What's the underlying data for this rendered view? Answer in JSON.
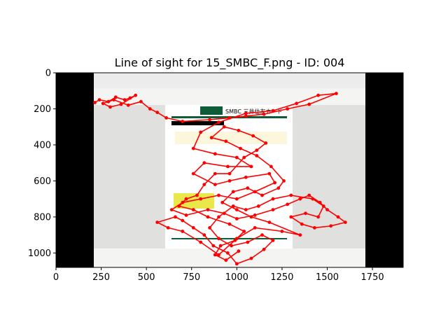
{
  "chart_data": {
    "type": "scatter",
    "title": "Line of sight for 15_SMBC_F.png - ID: 004",
    "xlabel": "",
    "ylabel": "",
    "xlim": [
      0,
      1920
    ],
    "ylim": [
      1080,
      0
    ],
    "y_inverted": true,
    "grid": false,
    "x_ticks": [
      0,
      250,
      500,
      750,
      1000,
      1250,
      1500,
      1750
    ],
    "y_ticks": [
      0,
      200,
      400,
      600,
      800,
      1000
    ],
    "background_image": {
      "description_text": "SMBC 三井住友カード",
      "extent_x": [
        0,
        1920
      ],
      "extent_y": [
        0,
        1080
      ],
      "letterbox_color": "#000000",
      "content_x": [
        210,
        1710
      ]
    },
    "series": [
      {
        "line_color": "#ff0000",
        "marker_color": "#ff0000",
        "marker": "circle",
        "points": [
          [
            215,
            165
          ],
          [
            240,
            150
          ],
          [
            290,
            160
          ],
          [
            330,
            135
          ],
          [
            380,
            150
          ],
          [
            410,
            140
          ],
          [
            440,
            125
          ],
          [
            360,
            175
          ],
          [
            300,
            190
          ],
          [
            260,
            170
          ],
          [
            320,
            150
          ],
          [
            400,
            180
          ],
          [
            470,
            160
          ],
          [
            520,
            200
          ],
          [
            560,
            220
          ],
          [
            610,
            250
          ],
          [
            700,
            270
          ],
          [
            850,
            260
          ],
          [
            960,
            250
          ],
          [
            1050,
            240
          ],
          [
            1150,
            230
          ],
          [
            1280,
            200
          ],
          [
            1400,
            175
          ],
          [
            1550,
            115
          ],
          [
            1450,
            125
          ],
          [
            1330,
            170
          ],
          [
            1200,
            210
          ],
          [
            1050,
            225
          ],
          [
            900,
            275
          ],
          [
            800,
            330
          ],
          [
            760,
            420
          ],
          [
            880,
            450
          ],
          [
            1000,
            470
          ],
          [
            1080,
            520
          ],
          [
            950,
            520
          ],
          [
            820,
            500
          ],
          [
            760,
            560
          ],
          [
            880,
            620
          ],
          [
            960,
            600
          ],
          [
            1050,
            580
          ],
          [
            1180,
            560
          ],
          [
            1210,
            610
          ],
          [
            1100,
            660
          ],
          [
            1000,
            700
          ],
          [
            900,
            680
          ],
          [
            800,
            700
          ],
          [
            700,
            720
          ],
          [
            640,
            760
          ],
          [
            720,
            790
          ],
          [
            840,
            760
          ],
          [
            930,
            780
          ],
          [
            1000,
            810
          ],
          [
            1100,
            790
          ],
          [
            1200,
            760
          ],
          [
            1280,
            730
          ],
          [
            1350,
            700
          ],
          [
            1400,
            680
          ],
          [
            1460,
            720
          ],
          [
            1500,
            760
          ],
          [
            1560,
            800
          ],
          [
            1600,
            830
          ],
          [
            1520,
            850
          ],
          [
            1430,
            860
          ],
          [
            1360,
            840
          ],
          [
            1300,
            800
          ],
          [
            1380,
            780
          ],
          [
            1450,
            800
          ],
          [
            1480,
            740
          ],
          [
            1420,
            700
          ],
          [
            1300,
            680
          ],
          [
            1200,
            700
          ],
          [
            1120,
            740
          ],
          [
            1050,
            760
          ],
          [
            980,
            740
          ],
          [
            900,
            800
          ],
          [
            850,
            860
          ],
          [
            900,
            920
          ],
          [
            970,
            960
          ],
          [
            1060,
            940
          ],
          [
            1140,
            900
          ],
          [
            1200,
            930
          ],
          [
            1150,
            980
          ],
          [
            1080,
            1030
          ],
          [
            1000,
            1060
          ],
          [
            950,
            1000
          ],
          [
            870,
            960
          ],
          [
            820,
            900
          ],
          [
            760,
            860
          ],
          [
            700,
            820
          ],
          [
            660,
            800
          ],
          [
            560,
            830
          ],
          [
            620,
            860
          ],
          [
            700,
            880
          ],
          [
            800,
            940
          ],
          [
            900,
            1010
          ],
          [
            1000,
            920
          ],
          [
            1100,
            860
          ],
          [
            1250,
            880
          ],
          [
            1350,
            900
          ],
          [
            1180,
            830
          ],
          [
            1080,
            800
          ],
          [
            1000,
            760
          ],
          [
            920,
            720
          ],
          [
            980,
            660
          ],
          [
            1060,
            640
          ],
          [
            1140,
            680
          ],
          [
            1230,
            640
          ],
          [
            1260,
            600
          ],
          [
            1190,
            520
          ],
          [
            1110,
            460
          ],
          [
            1020,
            420
          ],
          [
            940,
            380
          ],
          [
            860,
            360
          ],
          [
            930,
            300
          ],
          [
            1010,
            320
          ],
          [
            1090,
            350
          ],
          [
            1160,
            390
          ],
          [
            1110,
            430
          ],
          [
            1040,
            470
          ],
          [
            960,
            560
          ],
          [
            880,
            560
          ],
          [
            820,
            620
          ],
          [
            780,
            680
          ],
          [
            720,
            700
          ],
          [
            680,
            740
          ],
          [
            760,
            760
          ],
          [
            840,
            800
          ],
          [
            960,
            840
          ],
          [
            1040,
            880
          ],
          [
            990,
            930
          ],
          [
            910,
            960
          ],
          [
            880,
            1010
          ],
          [
            940,
            1040
          ],
          [
            1010,
            990
          ]
        ]
      }
    ]
  }
}
